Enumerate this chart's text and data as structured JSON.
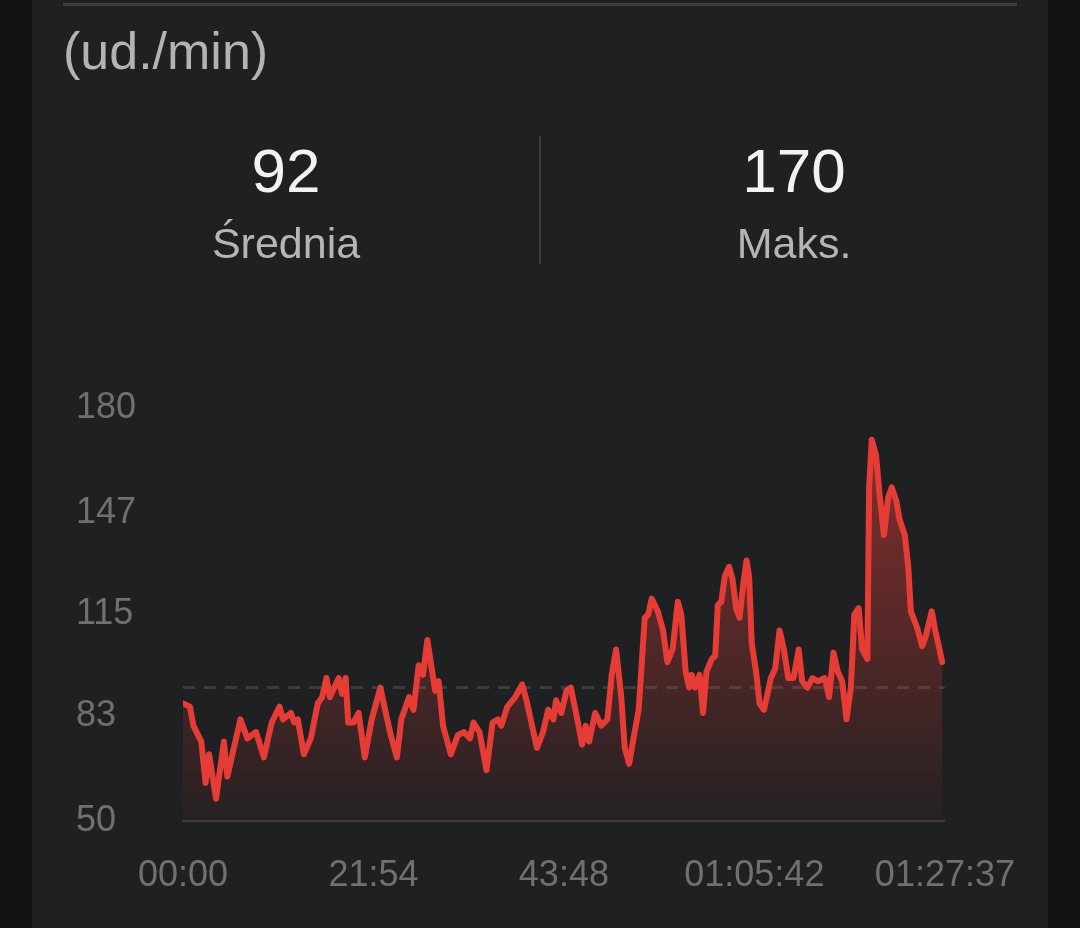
{
  "chart_data": {
    "type": "area",
    "annotations": [
      "(ud./min)",
      "92",
      "Średnia",
      "170",
      "Maks."
    ],
    "x": [
      0,
      0.8,
      1.2,
      2.1,
      2.6,
      3.0,
      3.8,
      4.7,
      5.1,
      6.6,
      7.4,
      8.4,
      9.3,
      10.2,
      11.1,
      11.5,
      12.4,
      12.8,
      13.2,
      13.9,
      14.7,
      15.5,
      16.0,
      16.5,
      16.9,
      17.9,
      18.3,
      18.7,
      19.0,
      19.6,
      20.2,
      20.9,
      21.7,
      22.7,
      23.4,
      23.9,
      24.6,
      25.1,
      26.0,
      26.5,
      27.1,
      27.6,
      28.1,
      28.6,
      29.0,
      29.4,
      29.9,
      30.8,
      31.6,
      32.3,
      33.0,
      33.4,
      34.1,
      34.9,
      35.6,
      36.2,
      36.6,
      37.3,
      38.2,
      39.0,
      39.5,
      40.7,
      41.4,
      42.0,
      42.6,
      42.9,
      43.5,
      44.1,
      44.6,
      45.2,
      45.9,
      46.3,
      46.7,
      47.4,
      48.1,
      48.8,
      49.3,
      49.8,
      50.4,
      50.8,
      51.3,
      51.8,
      52.4,
      53.1,
      53.5,
      53.9,
      54.6,
      55.2,
      55.7,
      56.3,
      56.9,
      57.3,
      57.8,
      58.2,
      58.5,
      58.9,
      59.4,
      59.8,
      60.2,
      60.8,
      61.2,
      61.5,
      61.9,
      62.3,
      62.8,
      63.2,
      63.6,
      64.0,
      64.4,
      64.8,
      65.1,
      65.4,
      65.9,
      66.3,
      66.8,
      67.6,
      68.1,
      68.6,
      69.1,
      69.6,
      70.2,
      70.8,
      71.2,
      71.8,
      72.4,
      73.0,
      73.8,
      74.3,
      74.8,
      75.3,
      75.8,
      76.3,
      76.8,
      77.2,
      77.7,
      78.1,
      78.7,
      78.9,
      79.2,
      79.7,
      80.1,
      80.6,
      81.1,
      81.5,
      82.0,
      82.4,
      83.0,
      83.4,
      83.7,
      84.4,
      85.0,
      85.4,
      86.1,
      86.5,
      87.0,
      87.3
    ],
    "series": [
      {
        "color": "#e53d36",
        "values": [
          87,
          86,
          80,
          75,
          62,
          71,
          57,
          75,
          64,
          82,
          76,
          78,
          70,
          81,
          86,
          82,
          84,
          81,
          82,
          71,
          76,
          87,
          89,
          95,
          89,
          95,
          90,
          95,
          81,
          81,
          84,
          70,
          82,
          92,
          83,
          77,
          70,
          82,
          89,
          85,
          99,
          96,
          107,
          98,
          91,
          94,
          80,
          71,
          77,
          78,
          76,
          81,
          78,
          66,
          81,
          82,
          80,
          86,
          89,
          93,
          88,
          73,
          78,
          85,
          82,
          88,
          84,
          91,
          92,
          84,
          74,
          80,
          75,
          84,
          80,
          82,
          96,
          104,
          89,
          73,
          68,
          76,
          85,
          114,
          115,
          120,
          116,
          110,
          100,
          104,
          119,
          115,
          97,
          92,
          96,
          92,
          96,
          84,
          97,
          101,
          102,
          118,
          119,
          127,
          130,
          126,
          117,
          114,
          124,
          132,
          127,
          106,
          97,
          87,
          85,
          95,
          98,
          110,
          104,
          95,
          95,
          104,
          94,
          92,
          95,
          94,
          95,
          89,
          103,
          97,
          94,
          82,
          92,
          115,
          117,
          104,
          101,
          155,
          170,
          165,
          153,
          140,
          152,
          155,
          151,
          145,
          140,
          130,
          116,
          111,
          105,
          108,
          116,
          110,
          104,
          100
        ]
      }
    ],
    "xlim": [
      0,
      87.6167
    ],
    "xticks": [
      {
        "value": 0,
        "label": "00:00"
      },
      {
        "value": 21.9,
        "label": "21:54"
      },
      {
        "value": 43.8,
        "label": "43:48"
      },
      {
        "value": 65.7,
        "label": "01:05:42"
      },
      {
        "value": 87.6167,
        "label": "01:27:37"
      }
    ],
    "ylim": [
      50,
      180
    ],
    "yticks": [
      50,
      83,
      115,
      147,
      180
    ],
    "ref_lines": [
      {
        "axis": "y",
        "value": 92,
        "color": "#3a3b3c",
        "line_style": "dashed"
      }
    ]
  }
}
